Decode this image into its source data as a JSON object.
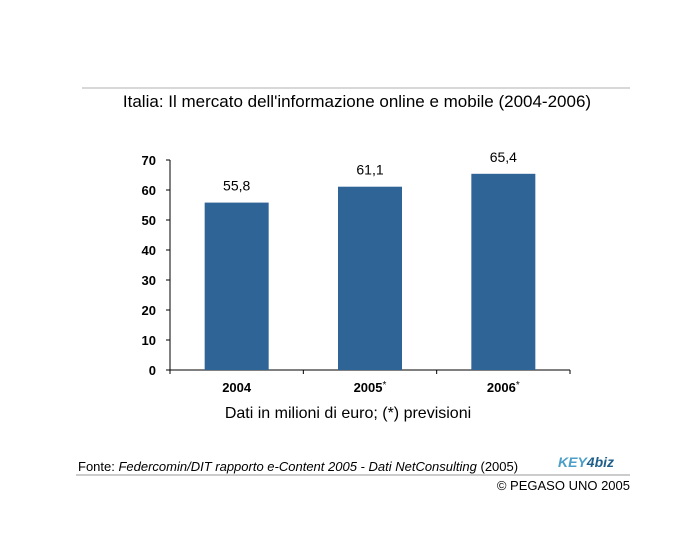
{
  "chart_data": {
    "type": "bar",
    "title": "Italia: Il mercato dell'informazione online e mobile (2004-2006)",
    "categories": [
      "2004",
      "2005",
      "2006"
    ],
    "category_suffix": [
      "",
      "*",
      "*"
    ],
    "values": [
      55.8,
      61.1,
      65.4
    ],
    "value_labels": [
      "55,8",
      "61,1",
      "65,4"
    ],
    "ylim": [
      0,
      70
    ],
    "yticks": [
      0,
      10,
      20,
      30,
      40,
      50,
      60,
      70
    ],
    "xlabel": "Dati in milioni di euro; (*) previsioni",
    "ylabel": "",
    "bar_color": "#2e6496",
    "grid": false,
    "legend": "none"
  },
  "footer": {
    "source_prefix": "Fonte: ",
    "source_italic": "Federcomin/DIT rapporto e-Content 2005 - Dati NetConsulting",
    "source_suffix": " (2005)",
    "copyright": "© PEGASO UNO 2005",
    "logo_text_a": "KEY",
    "logo_text_b": "4",
    "logo_text_c": "biz"
  }
}
